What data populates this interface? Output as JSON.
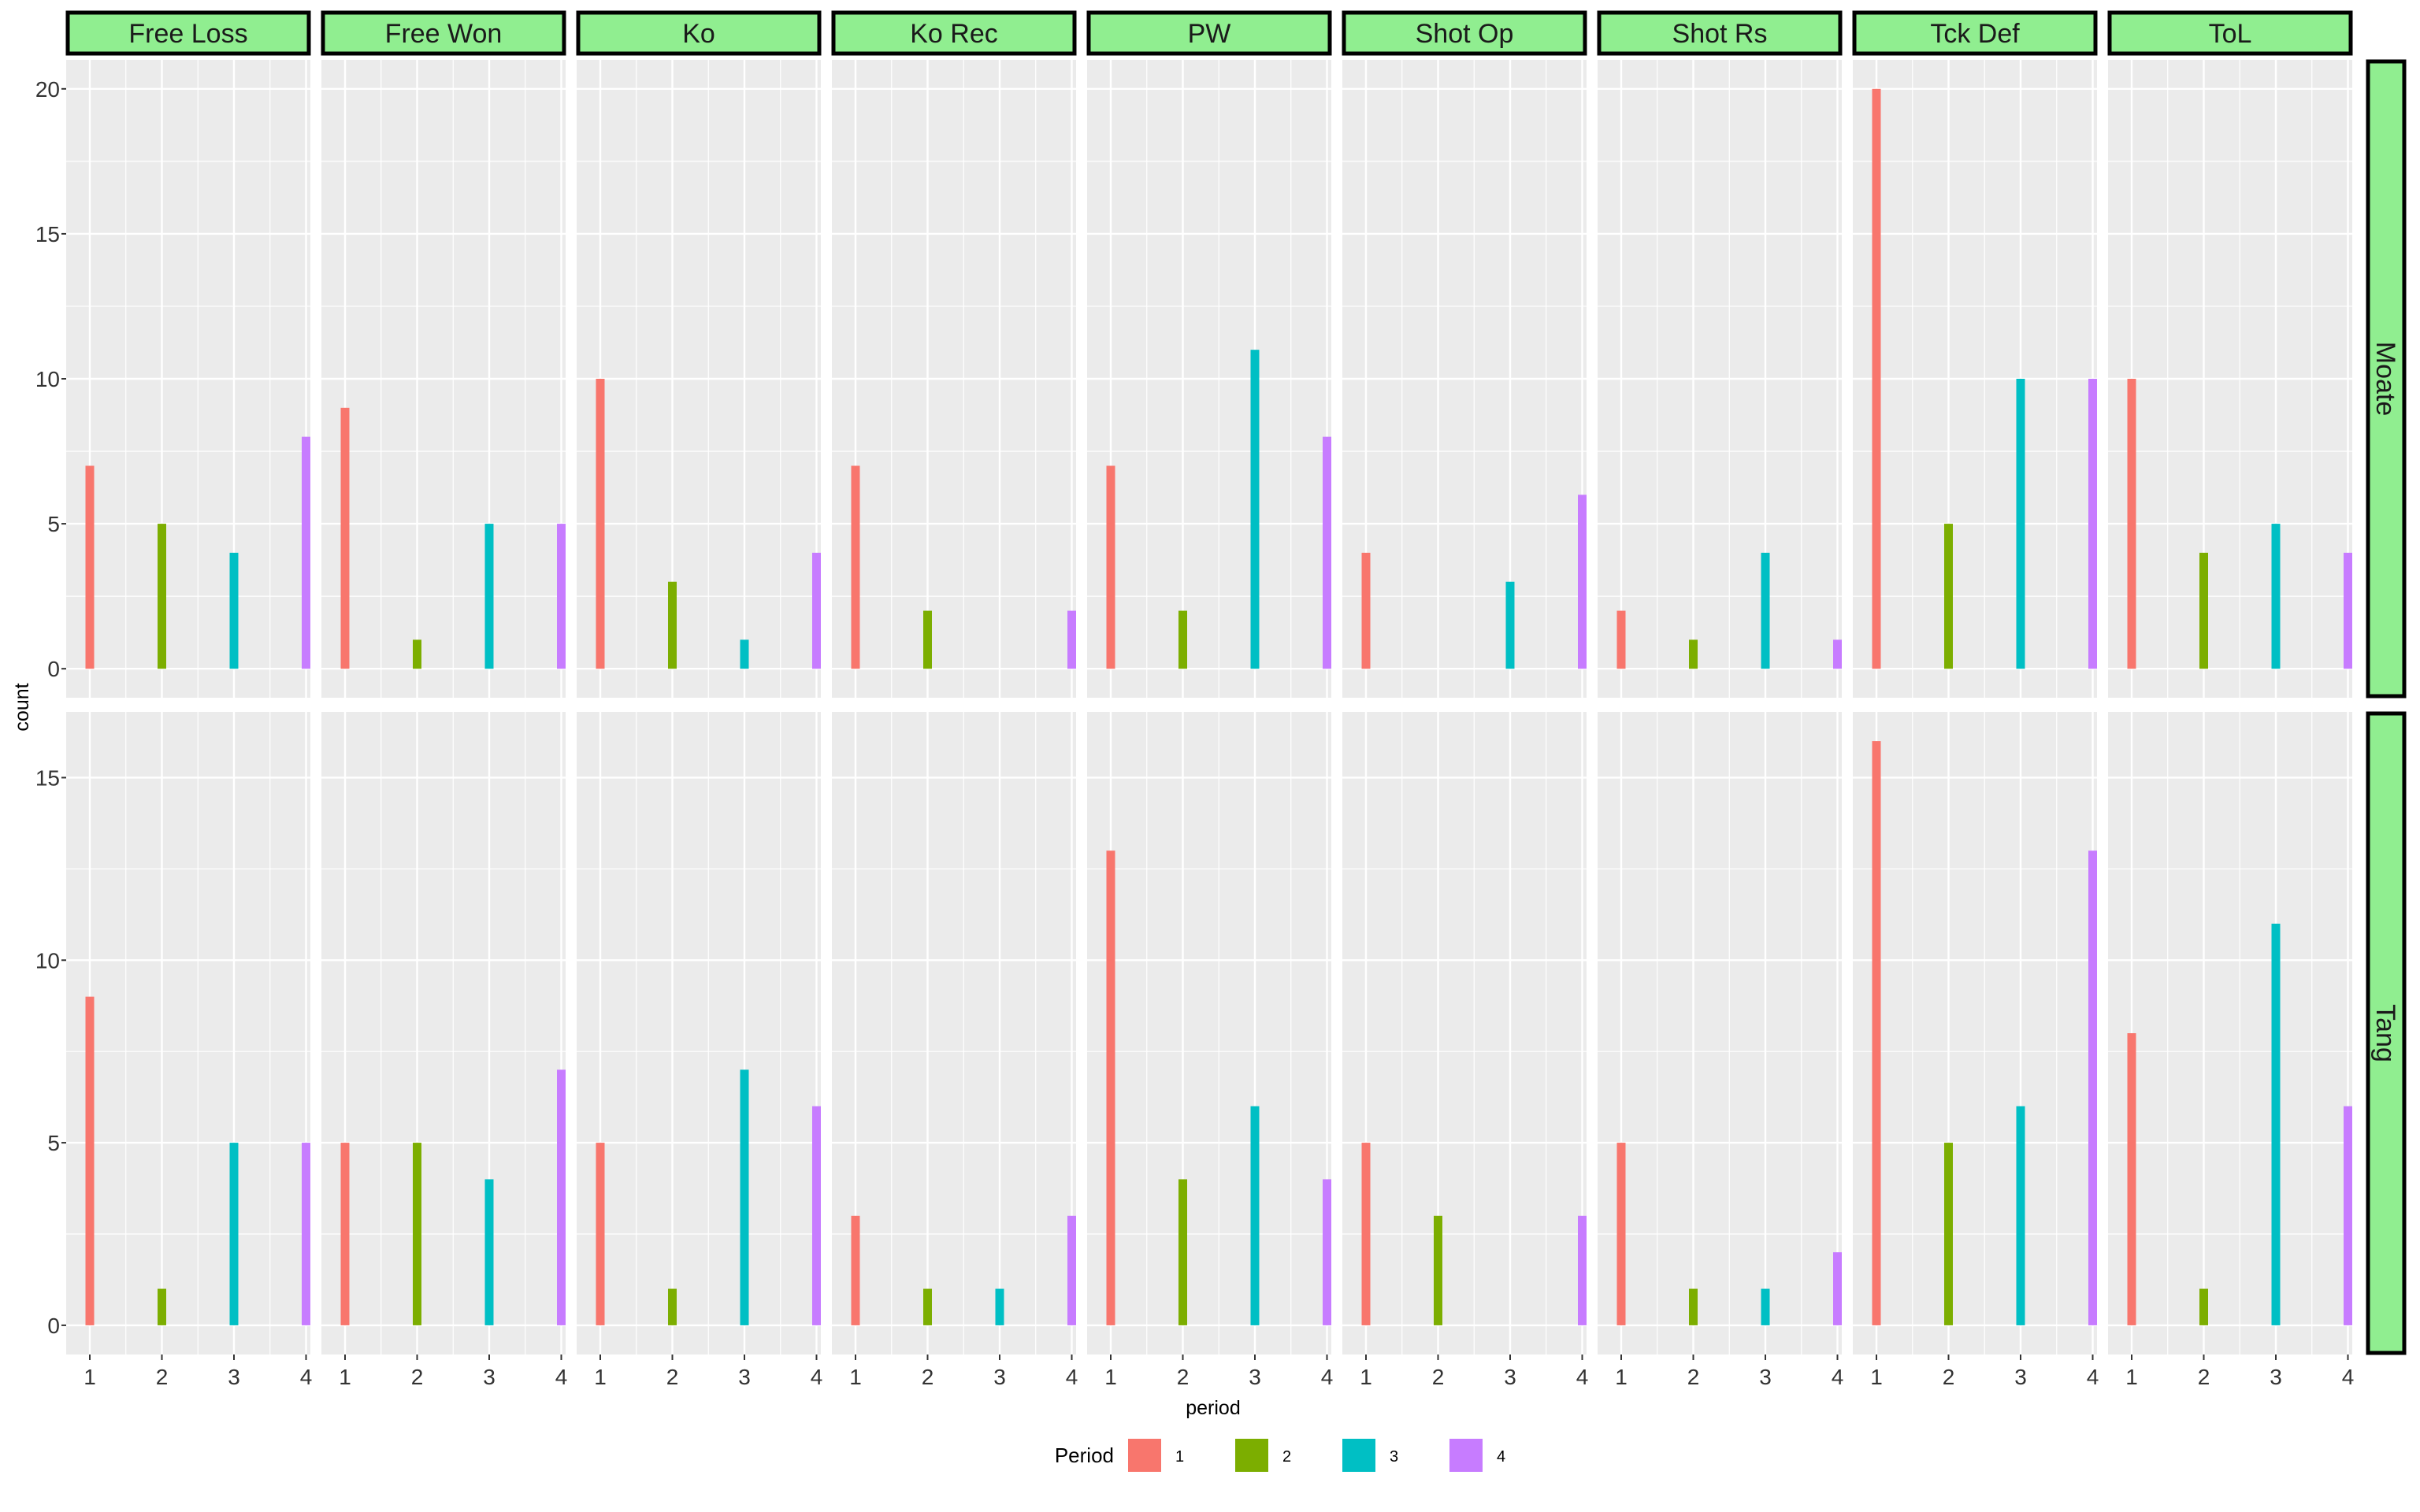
{
  "chart_data": {
    "type": "bar",
    "xlabel": "period",
    "ylabel": "count",
    "x_categories": [
      "1",
      "2",
      "3",
      "4"
    ],
    "column_facets": [
      "Free Loss",
      "Free Won",
      "Ko",
      "Ko Rec",
      "PW",
      "Shot Op",
      "Shot Rs",
      "Tck Def",
      "ToL"
    ],
    "row_facets": [
      {
        "label": "Moate",
        "ylim": [
          0,
          20
        ],
        "yticks": [
          0,
          5,
          10,
          15,
          20
        ],
        "values": [
          [
            7,
            5,
            4,
            8
          ],
          [
            9,
            1,
            5,
            5
          ],
          [
            10,
            3,
            1,
            4
          ],
          [
            7,
            2,
            0,
            2
          ],
          [
            7,
            2,
            11,
            8
          ],
          [
            4,
            0,
            3,
            6
          ],
          [
            2,
            1,
            4,
            1
          ],
          [
            20,
            5,
            10,
            10
          ],
          [
            10,
            4,
            5,
            4
          ]
        ]
      },
      {
        "label": "Tang",
        "ylim": [
          0,
          16
        ],
        "yticks": [
          0,
          5,
          10,
          15
        ],
        "values": [
          [
            9,
            1,
            5,
            5
          ],
          [
            5,
            5,
            4,
            7
          ],
          [
            5,
            1,
            7,
            6
          ],
          [
            3,
            1,
            1,
            3
          ],
          [
            13,
            4,
            6,
            4
          ],
          [
            5,
            3,
            0,
            3
          ],
          [
            5,
            1,
            1,
            2
          ],
          [
            16,
            5,
            6,
            13
          ],
          [
            8,
            1,
            11,
            6
          ]
        ]
      }
    ],
    "legend": {
      "title": "Period",
      "placement": "bottom",
      "entries": [
        "1",
        "2",
        "3",
        "4"
      ]
    },
    "grid": true,
    "colors": {
      "period_1": "#F8766D",
      "period_2": "#7CAE00",
      "period_3": "#00BFC4",
      "period_4": "#C77CFF",
      "panel_background": "#EBEBEB",
      "grid_line": "#FFFFFF",
      "strip_fill": "#90EE90",
      "strip_border": "#000000"
    }
  }
}
